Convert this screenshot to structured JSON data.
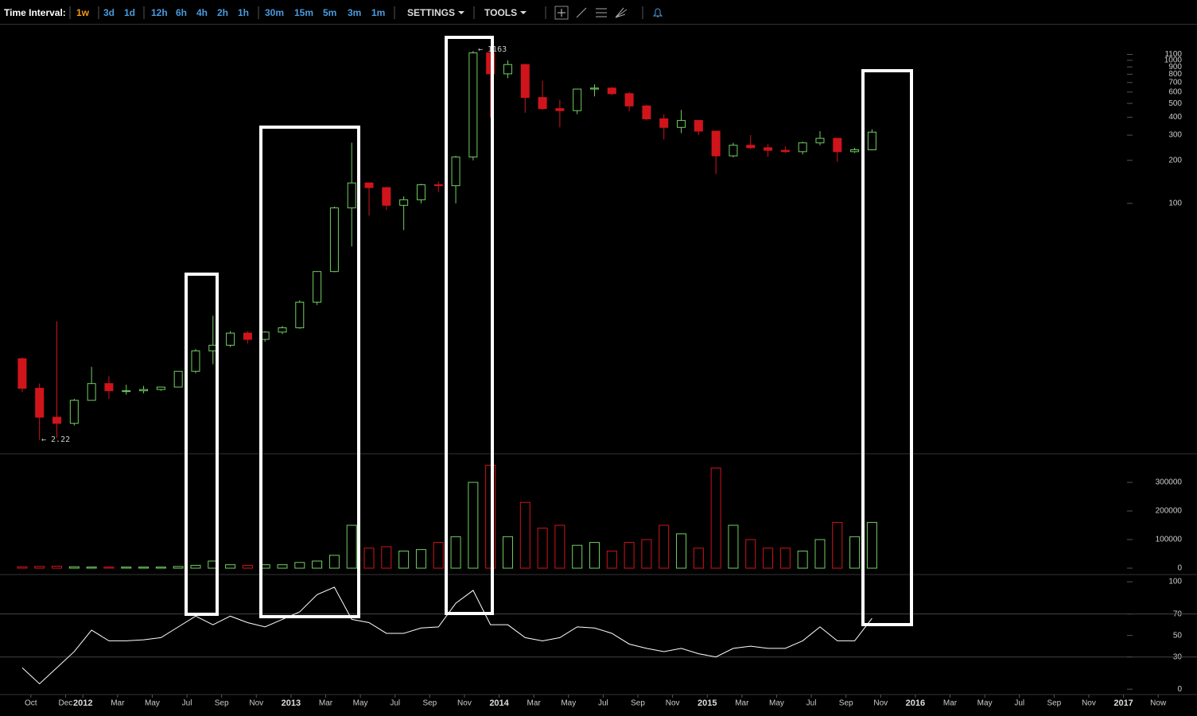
{
  "toolbar": {
    "label": "Time Interval:",
    "intervals": [
      "1w",
      "3d",
      "1d",
      "12h",
      "6h",
      "4h",
      "2h",
      "1h",
      "30m",
      "15m",
      "5m",
      "3m",
      "1m"
    ],
    "settings": "SETTINGS",
    "tools": "TOOLS"
  },
  "chart_data": [
    {
      "type": "candlestick",
      "log_scale": true,
      "x": [
        "2011-09",
        "2011-10",
        "2011-11",
        "2011-12",
        "2012-01",
        "2012-02",
        "2012-03",
        "2012-04",
        "2012-05",
        "2012-06",
        "2012-07",
        "2012-08",
        "2012-09",
        "2012-10",
        "2012-11",
        "2012-12",
        "2013-01",
        "2013-02",
        "2013-03",
        "2013-04",
        "2013-05",
        "2013-06",
        "2013-07",
        "2013-08",
        "2013-09",
        "2013-10",
        "2013-11",
        "2013-12",
        "2014-01",
        "2014-02",
        "2014-03",
        "2014-04",
        "2014-05",
        "2014-06",
        "2014-07",
        "2014-08",
        "2014-09",
        "2014-10",
        "2014-11",
        "2014-12",
        "2015-01",
        "2015-02",
        "2015-03",
        "2015-04",
        "2015-05",
        "2015-06",
        "2015-07",
        "2015-08",
        "2015-09",
        "2015-10"
      ],
      "open": [
        8.2,
        5.1,
        3.2,
        2.9,
        4.2,
        5.5,
        4.9,
        4.9,
        5.0,
        5.2,
        6.7,
        9.3,
        10.2,
        12.4,
        11.2,
        12.6,
        13.5,
        20.4,
        33.4,
        93,
        139,
        129,
        97,
        106,
        135,
        133,
        211,
        1128,
        805,
        935,
        550,
        460,
        445,
        630,
        640,
        585,
        480,
        390,
        340,
        380,
        320,
        215,
        255,
        245,
        235,
        230,
        265,
        285,
        230,
        237
      ],
      "high": [
        8.4,
        5.5,
        15,
        4.3,
        7.2,
        6.2,
        5.4,
        5.3,
        5.2,
        6.7,
        9.6,
        16.4,
        12.8,
        12.8,
        12.8,
        13.9,
        21.0,
        33.5,
        95,
        266,
        140,
        130,
        112,
        137,
        142,
        215,
        1163,
        1150,
        1000,
        945,
        720,
        530,
        630,
        680,
        650,
        600,
        490,
        420,
        450,
        380,
        320,
        265,
        300,
        260,
        250,
        270,
        320,
        285,
        245,
        330
      ],
      "low": [
        4.8,
        2.22,
        2.3,
        2.8,
        4.2,
        4.3,
        4.6,
        4.7,
        4.9,
        5.2,
        6.5,
        7.5,
        9.9,
        10.5,
        10.8,
        12.2,
        13.3,
        19.5,
        33,
        50,
        82,
        90,
        65,
        100,
        120,
        100,
        200,
        400,
        750,
        430,
        450,
        340,
        420,
        560,
        570,
        440,
        380,
        280,
        310,
        300,
        160,
        210,
        240,
        212,
        225,
        220,
        255,
        195,
        225,
        235
      ],
      "close": [
        5.1,
        3.2,
        2.9,
        4.2,
        5.5,
        4.9,
        4.9,
        5.0,
        5.2,
        6.7,
        9.3,
        10.2,
        12.4,
        11.2,
        12.6,
        13.5,
        20.4,
        33.4,
        93,
        139,
        129,
        97,
        106,
        135,
        133,
        211,
        1128,
        805,
        935,
        550,
        460,
        445,
        630,
        640,
        585,
        480,
        390,
        340,
        380,
        320,
        215,
        255,
        245,
        235,
        230,
        265,
        285,
        230,
        237,
        315
      ],
      "up_color": "#6fcf5f",
      "down_color": "#d0141b",
      "ylim": [
        1.8,
        1800
      ],
      "yticks": [
        100,
        200,
        300,
        400,
        500,
        600,
        700,
        800,
        900,
        1000,
        1100
      ],
      "xlim": [
        "2011-09",
        "2017-04"
      ],
      "xticks": [
        {
          "value": "2011-10",
          "label": "Oct"
        },
        {
          "value": "2011-12",
          "label": "Dec"
        },
        {
          "value": "2012-01",
          "label": "2012"
        },
        {
          "value": "2012-03",
          "label": "Mar"
        },
        {
          "value": "2012-05",
          "label": "May"
        },
        {
          "value": "2012-07",
          "label": "Jul"
        },
        {
          "value": "2012-09",
          "label": "Sep"
        },
        {
          "value": "2012-11",
          "label": "Nov"
        },
        {
          "value": "2013-01",
          "label": "2013"
        },
        {
          "value": "2013-03",
          "label": "Mar"
        },
        {
          "value": "2013-05",
          "label": "May"
        },
        {
          "value": "2013-07",
          "label": "Jul"
        },
        {
          "value": "2013-09",
          "label": "Sep"
        },
        {
          "value": "2013-11",
          "label": "Nov"
        },
        {
          "value": "2014-01",
          "label": "2014"
        },
        {
          "value": "2014-03",
          "label": "Mar"
        },
        {
          "value": "2014-05",
          "label": "May"
        },
        {
          "value": "2014-07",
          "label": "Jul"
        },
        {
          "value": "2014-09",
          "label": "Sep"
        },
        {
          "value": "2014-11",
          "label": "Nov"
        },
        {
          "value": "2015-01",
          "label": "2015"
        },
        {
          "value": "2015-03",
          "label": "Mar"
        },
        {
          "value": "2015-05",
          "label": "May"
        },
        {
          "value": "2015-07",
          "label": "Jul"
        },
        {
          "value": "2015-09",
          "label": "Sep"
        },
        {
          "value": "2015-11",
          "label": "Nov"
        },
        {
          "value": "2016-01",
          "label": "2016"
        },
        {
          "value": "2016-03",
          "label": "Mar"
        },
        {
          "value": "2016-05",
          "label": "May"
        },
        {
          "value": "2016-07",
          "label": "Jul"
        },
        {
          "value": "2016-09",
          "label": "Sep"
        },
        {
          "value": "2016-11",
          "label": "Nov"
        },
        {
          "value": "2017-01",
          "label": "2017"
        },
        {
          "value": "2017-03",
          "label": "Now"
        }
      ],
      "annotations": [
        "← 2.22",
        "← 1163"
      ]
    },
    {
      "type": "bar",
      "values": [
        5000,
        6000,
        7000,
        5000,
        4000,
        4000,
        4000,
        4000,
        4000,
        6000,
        10000,
        25000,
        12000,
        10000,
        12000,
        12000,
        20000,
        25000,
        45000,
        150000,
        70000,
        75000,
        60000,
        65000,
        90000,
        110000,
        300000,
        360000,
        110000,
        230000,
        140000,
        150000,
        80000,
        90000,
        60000,
        90000,
        100000,
        150000,
        120000,
        70000,
        350000,
        150000,
        100000,
        70000,
        70000,
        60000,
        100000,
        160000,
        110000,
        160000
      ],
      "ylim": [
        0,
        400000
      ],
      "yticks": [
        0,
        100000,
        200000,
        300000
      ]
    },
    {
      "type": "line",
      "color": "#ffffff",
      "values": [
        20,
        5,
        20,
        35,
        55,
        45,
        45,
        46,
        48,
        58,
        68,
        60,
        68,
        62,
        58,
        65,
        72,
        88,
        95,
        65,
        62,
        52,
        52,
        57,
        58,
        80,
        92,
        60,
        60,
        48,
        45,
        48,
        58,
        57,
        52,
        42,
        38,
        35,
        38,
        33,
        30,
        38,
        40,
        38,
        38,
        45,
        58,
        45,
        45,
        66
      ],
      "ylim": [
        -5,
        106
      ],
      "yticks": [
        0,
        30,
        50,
        70,
        100
      ],
      "bands": [
        30,
        70
      ]
    }
  ]
}
